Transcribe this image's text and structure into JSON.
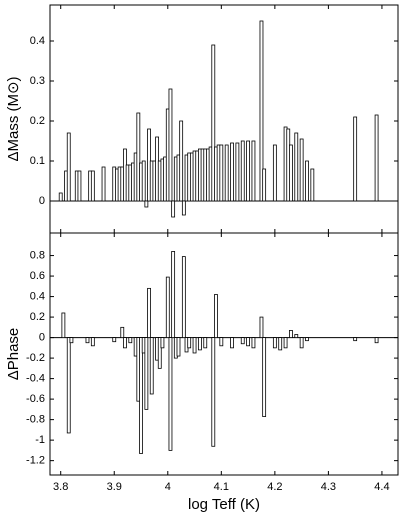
{
  "chart_data": [
    {
      "type": "bar",
      "ylabel": "ΔMass (M⊙)",
      "x": [
        3.8,
        3.81,
        3.815,
        3.83,
        3.835,
        3.855,
        3.86,
        3.88,
        3.9,
        3.905,
        3.91,
        3.915,
        3.92,
        3.925,
        3.93,
        3.935,
        3.94,
        3.945,
        3.95,
        3.955,
        3.96,
        3.965,
        3.97,
        3.975,
        3.98,
        3.985,
        3.99,
        3.995,
        4.0,
        4.005,
        4.01,
        4.015,
        4.02,
        4.025,
        4.03,
        4.035,
        4.04,
        4.045,
        4.05,
        4.055,
        4.06,
        4.065,
        4.07,
        4.075,
        4.08,
        4.085,
        4.09,
        4.095,
        4.1,
        4.11,
        4.12,
        4.13,
        4.14,
        4.15,
        4.16,
        4.175,
        4.18,
        4.2,
        4.22,
        4.225,
        4.23,
        4.24,
        4.25,
        4.26,
        4.27,
        4.35,
        4.39
      ],
      "values": [
        0.02,
        0.075,
        0.17,
        0.075,
        0.075,
        0.075,
        0.075,
        0.085,
        0.085,
        0.08,
        0.085,
        0.085,
        0.13,
        0.09,
        0.09,
        0.095,
        0.12,
        0.22,
        0.095,
        0.1,
        -0.015,
        0.18,
        0.1,
        0.1,
        0.16,
        0.1,
        0.105,
        0.11,
        0.23,
        0.28,
        -0.04,
        0.11,
        0.115,
        0.2,
        -0.035,
        0.115,
        0.12,
        0.12,
        0.125,
        0.125,
        0.13,
        0.13,
        0.13,
        0.13,
        0.135,
        0.39,
        0.135,
        0.14,
        0.14,
        0.14,
        0.145,
        0.145,
        0.15,
        0.15,
        0.15,
        0.45,
        0.08,
        0.14,
        0.185,
        0.18,
        0.14,
        0.17,
        0.155,
        0.1,
        0.08,
        0.21,
        0.215
      ],
      "xlim": [
        3.78,
        4.43
      ],
      "xticks": [
        3.8,
        3.9,
        4,
        4.1,
        4.2,
        4.3,
        4.4
      ],
      "ylim": [
        -0.08,
        0.49
      ],
      "yticks": [
        0,
        0.1,
        0.2,
        0.3,
        0.4
      ]
    },
    {
      "type": "bar",
      "ylabel": "ΔPhase",
      "xlabel": "log Teff (K)",
      "x": [
        3.805,
        3.815,
        3.82,
        3.85,
        3.86,
        3.9,
        3.915,
        3.92,
        3.93,
        3.94,
        3.945,
        3.95,
        3.955,
        3.96,
        3.965,
        3.97,
        3.98,
        3.985,
        3.99,
        4.0,
        4.005,
        4.01,
        4.015,
        4.02,
        4.03,
        4.035,
        4.04,
        4.05,
        4.06,
        4.07,
        4.085,
        4.09,
        4.1,
        4.12,
        4.14,
        4.15,
        4.16,
        4.175,
        4.18,
        4.2,
        4.21,
        4.22,
        4.23,
        4.24,
        4.25,
        4.26,
        4.35,
        4.39
      ],
      "values": [
        0.24,
        -0.93,
        -0.05,
        -0.05,
        -0.08,
        -0.04,
        0.1,
        -0.1,
        -0.05,
        -0.18,
        -0.62,
        -1.13,
        -0.15,
        -0.7,
        0.48,
        -0.55,
        -0.22,
        -0.3,
        -0.1,
        0.59,
        -1.1,
        0.84,
        -0.2,
        -0.18,
        0.79,
        -0.14,
        -0.1,
        -0.15,
        -0.12,
        -0.1,
        -1.06,
        0.42,
        -0.08,
        -0.1,
        -0.06,
        -0.08,
        -0.1,
        0.2,
        -0.77,
        -0.1,
        -0.12,
        -0.1,
        0.07,
        0.03,
        -0.1,
        -0.03,
        -0.03,
        -0.05
      ],
      "xlim": [
        3.78,
        4.43
      ],
      "xticks": [
        3.8,
        3.9,
        4,
        4.1,
        4.2,
        4.3,
        4.4
      ],
      "ylim": [
        -1.34,
        1.02
      ],
      "yticks": [
        0.8,
        0.6,
        0.4,
        0.2,
        0,
        -0.2,
        -0.4,
        -0.6,
        -0.8,
        -1,
        -1.2
      ]
    }
  ]
}
